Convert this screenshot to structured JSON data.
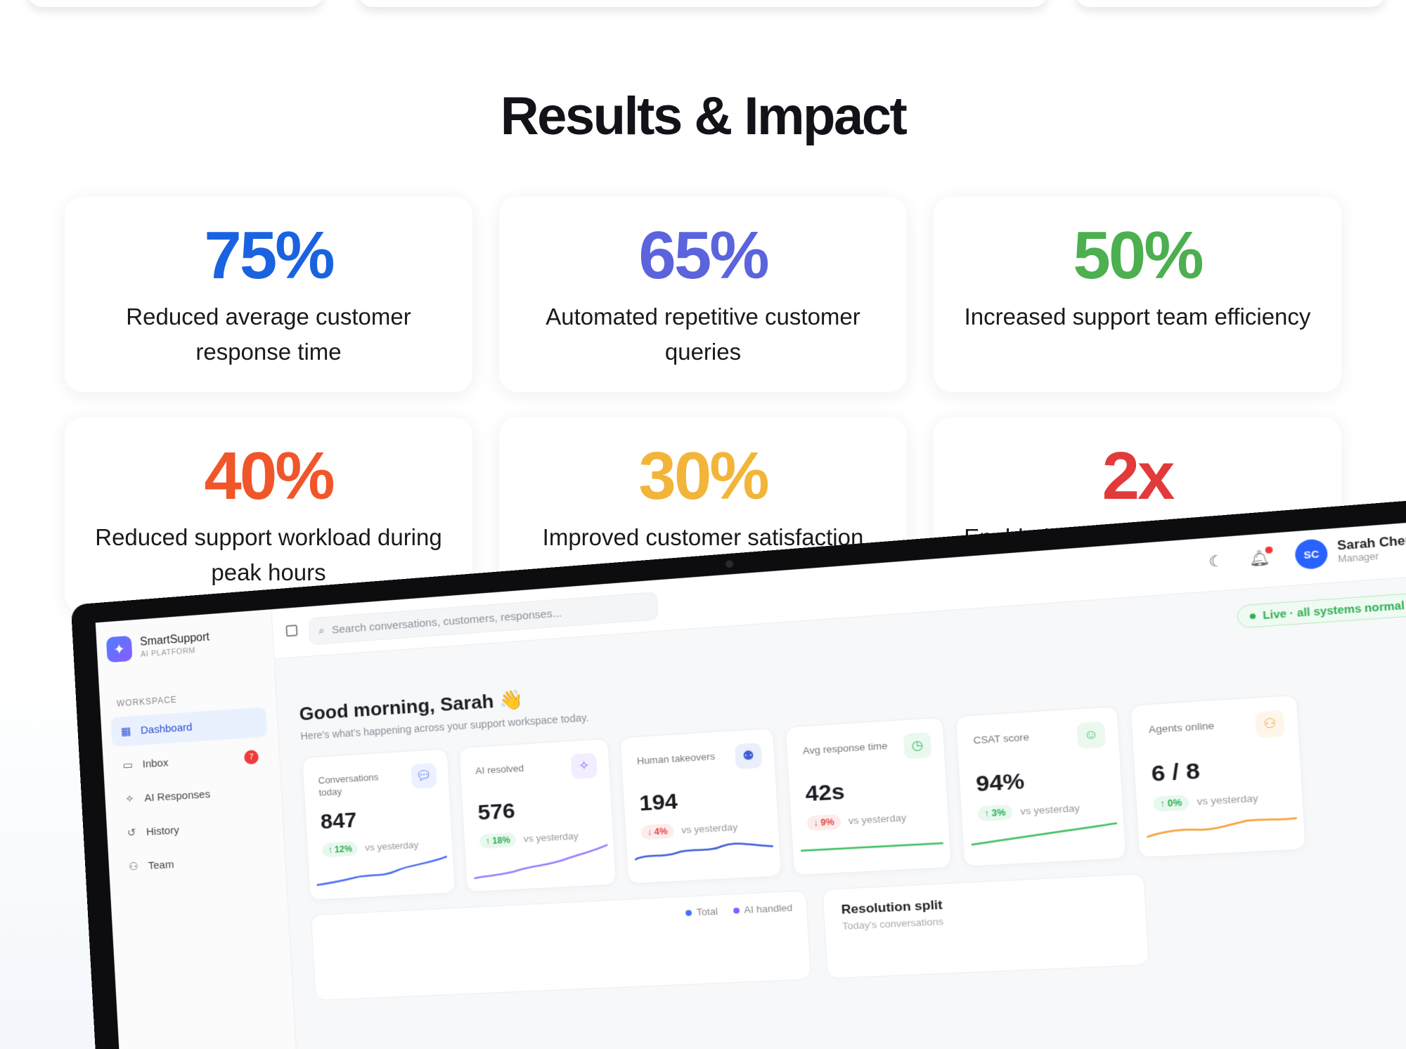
{
  "section": {
    "title": "Results & Impact"
  },
  "stats": [
    {
      "value": "75%",
      "label": "Reduced average customer response time",
      "color": "#1a63e0"
    },
    {
      "value": "65%",
      "label": "Automated repetitive customer queries",
      "color": "#5b64dc"
    },
    {
      "value": "50%",
      "label": "Increased support team efficiency",
      "color": "#4caf50"
    },
    {
      "value": "40%",
      "label": "Reduced support workload during peak hours",
      "color": "#f0562a"
    },
    {
      "value": "30%",
      "label": "Improved customer satisfaction rate",
      "color": "#f2b53a"
    },
    {
      "value": "2x",
      "label": "Enabled support agents to handle",
      "color": "#e23a3a"
    }
  ],
  "dashboard": {
    "brand": {
      "name": "SmartSupport",
      "subtitle": "AI PLATFORM"
    },
    "nav_heading": "WORKSPACE",
    "nav": [
      {
        "label": "Dashboard",
        "icon": "grid-icon",
        "active": true
      },
      {
        "label": "Inbox",
        "icon": "inbox-icon",
        "badge": "7"
      },
      {
        "label": "AI Responses",
        "icon": "sparkle-icon"
      },
      {
        "label": "History",
        "icon": "history-icon"
      },
      {
        "label": "Team",
        "icon": "team-icon"
      }
    ],
    "search_placeholder": "Search conversations, customers, responses...",
    "user": {
      "initials": "SC",
      "name": "Sarah Chen",
      "role": "Manager"
    },
    "status_pill": "Live · all systems normal",
    "greeting": "Good morning, Sarah 👋",
    "greeting_sub": "Here's what's happening across your support workspace today.",
    "kpis": [
      {
        "label": "Conversations today",
        "value": "847",
        "trend": "↑ 12%",
        "direction": "up",
        "note": "vs yesterday",
        "icon": "chat-icon",
        "color": "#4a6cf7"
      },
      {
        "label": "AI resolved",
        "value": "576",
        "trend": "↑ 18%",
        "direction": "up",
        "note": "vs yesterday",
        "icon": "sparkle-icon",
        "color": "#8a5cff"
      },
      {
        "label": "Human takeovers",
        "value": "194",
        "trend": "↓ 4%",
        "direction": "down",
        "note": "vs yesterday",
        "icon": "user-check-icon",
        "color": "#3f5fd6"
      },
      {
        "label": "Avg response time",
        "value": "42s",
        "trend": "↓ 9%",
        "direction": "down",
        "note": "vs yesterday",
        "icon": "clock-icon",
        "color": "#3fbf62"
      },
      {
        "label": "CSAT score",
        "value": "94%",
        "trend": "↑ 3%",
        "direction": "up",
        "note": "vs yesterday",
        "icon": "smile-icon",
        "color": "#3fbf62"
      },
      {
        "label": "Agents online",
        "value": "6 / 8",
        "trend": "↑ 0%",
        "direction": "up",
        "note": "vs yesterday",
        "icon": "users-icon",
        "color": "#f5a23a"
      }
    ],
    "chart_legend": {
      "total": "Total",
      "ai_handled": "AI handled"
    },
    "resolution": {
      "title": "Resolution split",
      "subtitle": "Today's conversations"
    }
  }
}
